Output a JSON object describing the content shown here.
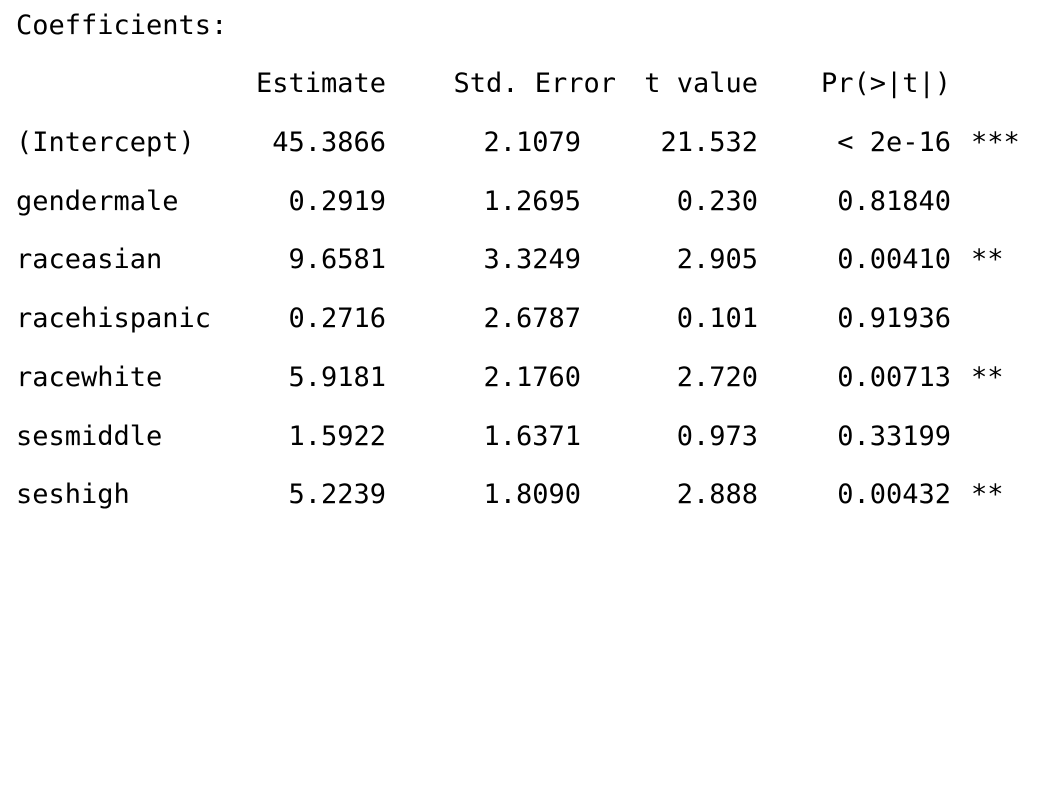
{
  "title": "Coefficients:",
  "headers": {
    "estimate": "Estimate",
    "std_error": "Std. Error",
    "t_value": "t value",
    "p_value": "Pr(>|t|)"
  },
  "rows": [
    {
      "term": "(Intercept)",
      "estimate": "45.3866",
      "std_error": "2.1079",
      "t_value": "21.532",
      "p_value": "< 2e-16",
      "signif": "***"
    },
    {
      "term": "gendermale",
      "estimate": "0.2919",
      "std_error": "1.2695",
      "t_value": "0.230",
      "p_value": "0.81840",
      "signif": ""
    },
    {
      "term": "raceasian",
      "estimate": "9.6581",
      "std_error": "3.3249",
      "t_value": "2.905",
      "p_value": "0.00410",
      "signif": "**"
    },
    {
      "term": "racehispanic",
      "estimate": "0.2716",
      "std_error": "2.6787",
      "t_value": "0.101",
      "p_value": "0.91936",
      "signif": ""
    },
    {
      "term": "racewhite",
      "estimate": "5.9181",
      "std_error": "2.1760",
      "t_value": "2.720",
      "p_value": "0.00713",
      "signif": "**"
    },
    {
      "term": "sesmiddle",
      "estimate": "1.5922",
      "std_error": "1.6371",
      "t_value": "0.973",
      "p_value": "0.33199",
      "signif": ""
    },
    {
      "term": "seshigh",
      "estimate": "5.2239",
      "std_error": "1.8090",
      "t_value": "2.888",
      "p_value": "0.00432",
      "signif": "**"
    }
  ]
}
